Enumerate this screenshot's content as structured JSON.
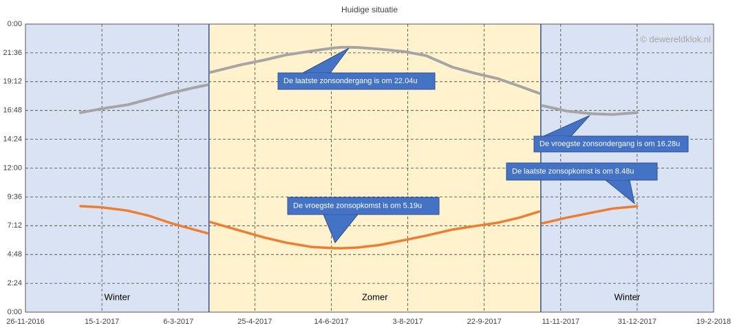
{
  "chart_data": {
    "type": "line",
    "title": "Huidige situatie",
    "watermark": "© dewereldklok.nl",
    "x": [
      "1-1-2017",
      "15-1-2017",
      "1-2-2017",
      "15-2-2017",
      "1-3-2017",
      "15-3-2017",
      "25-3-2017",
      "26-3-2017",
      "27-3-2017",
      "15-4-2017",
      "1-5-2017",
      "15-5-2017",
      "1-6-2017",
      "15-6-2017",
      "21-6-2017",
      "1-7-2017",
      "15-7-2017",
      "1-8-2017",
      "15-8-2017",
      "1-9-2017",
      "15-9-2017",
      "1-10-2017",
      "15-10-2017",
      "28-10-2017",
      "29-10-2017",
      "30-10-2017",
      "15-11-2017",
      "1-12-2017",
      "15-12-2017",
      "31-12-2017"
    ],
    "series": [
      {
        "color": "#a5a5a5",
        "values": [
          16.62,
          16.95,
          17.28,
          17.75,
          18.25,
          18.67,
          18.93,
          null,
          19.98,
          20.58,
          21.0,
          21.42,
          21.75,
          22.0,
          22.07,
          22.05,
          21.92,
          21.7,
          21.37,
          20.42,
          19.93,
          19.45,
          18.83,
          18.23,
          null,
          17.2,
          16.75,
          16.53,
          16.47,
          16.62
        ]
      },
      {
        "color": "#ed7d31",
        "values": [
          8.83,
          8.73,
          8.45,
          8.02,
          7.42,
          6.92,
          6.57,
          null,
          7.5,
          6.8,
          6.22,
          5.8,
          5.43,
          5.33,
          5.32,
          5.38,
          5.58,
          6.0,
          6.37,
          6.87,
          7.15,
          7.45,
          7.87,
          8.38,
          null,
          7.4,
          7.87,
          8.28,
          8.63,
          8.82
        ]
      }
    ],
    "xlim": [
      "26-11-2016",
      "19-2-2018"
    ],
    "xticks": [
      "26-11-2016",
      "15-1-2017",
      "6-3-2017",
      "25-4-2017",
      "14-6-2017",
      "3-8-2017",
      "22-9-2017",
      "11-11-2017",
      "31-12-2017",
      "19-2-2018"
    ],
    "ylim": [
      0,
      24
    ],
    "yticks": [
      {
        "value": 0,
        "label": "0:00"
      },
      {
        "value": 2.4,
        "label": "2:24"
      },
      {
        "value": 4.8,
        "label": "4:48"
      },
      {
        "value": 7.2,
        "label": "7:12"
      },
      {
        "value": 9.6,
        "label": "9:36"
      },
      {
        "value": 12,
        "label": "12:00"
      },
      {
        "value": 14.4,
        "label": "14:24"
      },
      {
        "value": 16.8,
        "label": "16:48"
      },
      {
        "value": 19.2,
        "label": "19:12"
      },
      {
        "value": 21.6,
        "label": "21:36"
      },
      {
        "value": 24,
        "label": "0:00"
      }
    ],
    "grid": true,
    "bands": [
      {
        "label": "Winter",
        "from": "26-11-2016",
        "to": "26-3-2017",
        "color": "#dae3f3"
      },
      {
        "label": "Zomer",
        "from": "26-3-2017",
        "to": "29-10-2017",
        "color": "#fff2cc"
      },
      {
        "label": "Winter",
        "from": "29-10-2017",
        "to": "19-2-2018",
        "color": "#dae3f3"
      }
    ],
    "annotations": [
      "De laatste zonsondergang is om 22.04u",
      "De vroegste zonsondergang is om 16.28u",
      "De laatste zonsopkomst is om 8.48u",
      "De vroegste zonsopkomst is om 5.19u"
    ]
  }
}
